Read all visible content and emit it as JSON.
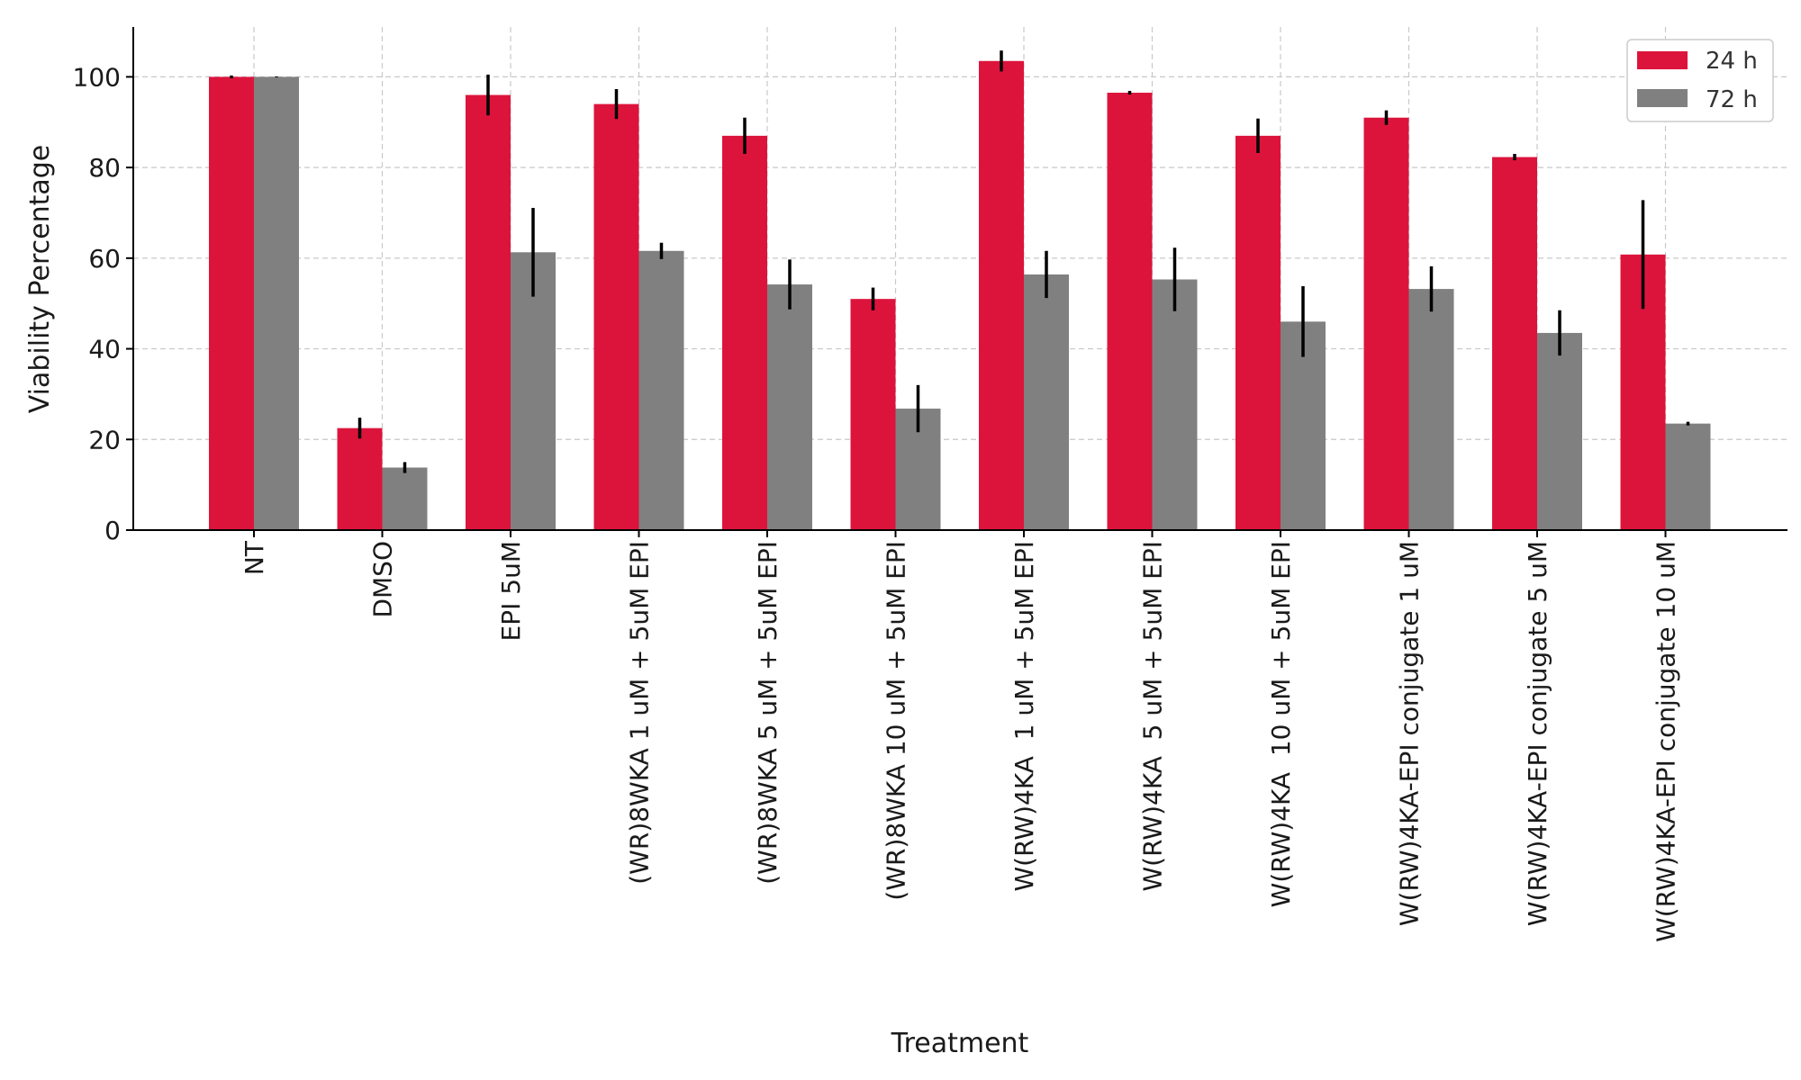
{
  "chart_data": {
    "type": "bar",
    "title": "",
    "xlabel": "Treatment",
    "ylabel": "Viability Percentage",
    "ylim": [
      0,
      111
    ],
    "yticks": [
      0,
      20,
      40,
      60,
      80,
      100
    ],
    "grid": true,
    "legend_position": "top-right",
    "categories": [
      "NT",
      "DMSO",
      "EPI 5uM",
      "(WR)8WKA 1 uM + 5uM EPI",
      "(WR)8WKA 5 uM + 5uM EPI",
      "(WR)8WKA 10 uM + 5uM EPI",
      "W(RW)4KA  1 uM + 5uM EPI",
      "W(RW)4KA  5 uM + 5uM EPI",
      "W(RW)4KA  10 uM + 5uM EPI",
      "W(RW)4KA-EPI conjugate 1 uM",
      "W(RW)4KA-EPI conjugate 5 uM",
      "W(RW)4KA-EPI conjugate 10 uM"
    ],
    "series": [
      {
        "name": "24 h",
        "color": "#DC143C",
        "values": [
          100,
          22.5,
          96,
          94,
          87,
          51,
          103.5,
          96.5,
          87,
          91,
          82.3,
          60.8
        ],
        "errors": [
          0.3,
          2.3,
          4.5,
          3.3,
          4,
          2.5,
          2.3,
          0.4,
          3.8,
          1.6,
          0.7,
          12
        ]
      },
      {
        "name": "72 h",
        "color": "#808080",
        "values": [
          100,
          13.8,
          61.3,
          61.6,
          54.2,
          26.8,
          56.4,
          55.3,
          46,
          53.2,
          43.5,
          23.5
        ],
        "errors": [
          0.1,
          1.2,
          9.8,
          1.8,
          5.5,
          5.2,
          5.2,
          7,
          7.8,
          5,
          5,
          0.4
        ]
      }
    ]
  }
}
